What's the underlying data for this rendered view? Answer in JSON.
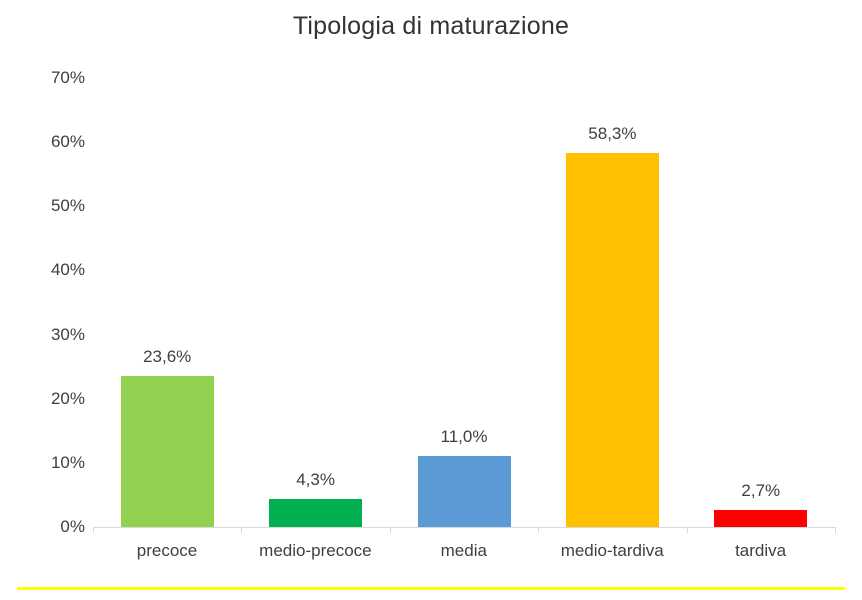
{
  "chart_data": {
    "type": "bar",
    "title": "Tipologia di maturazione",
    "categories": [
      "precoce",
      "medio-precoce",
      "media",
      "medio-tardiva",
      "tardiva"
    ],
    "values": [
      23.6,
      4.3,
      11.0,
      58.3,
      2.7
    ],
    "value_labels": [
      "23,6%",
      "4,3%",
      "11,0%",
      "58,3%",
      "2,7%"
    ],
    "bar_colors": [
      "#92d050",
      "#00b050",
      "#5b9bd5",
      "#ffc000",
      "#ff0000"
    ],
    "xlabel": "",
    "ylabel": "",
    "ylim": [
      0,
      70
    ],
    "ytick_step": 10,
    "ytick_labels": [
      "0%",
      "10%",
      "20%",
      "30%",
      "40%",
      "50%",
      "60%",
      "70%"
    ],
    "grid": false,
    "legend": "none"
  },
  "colors": {
    "axis_line": "#d9d9d9",
    "label_text": "#3f3f3f",
    "title_text": "#333333",
    "underline": "#ffff00"
  }
}
